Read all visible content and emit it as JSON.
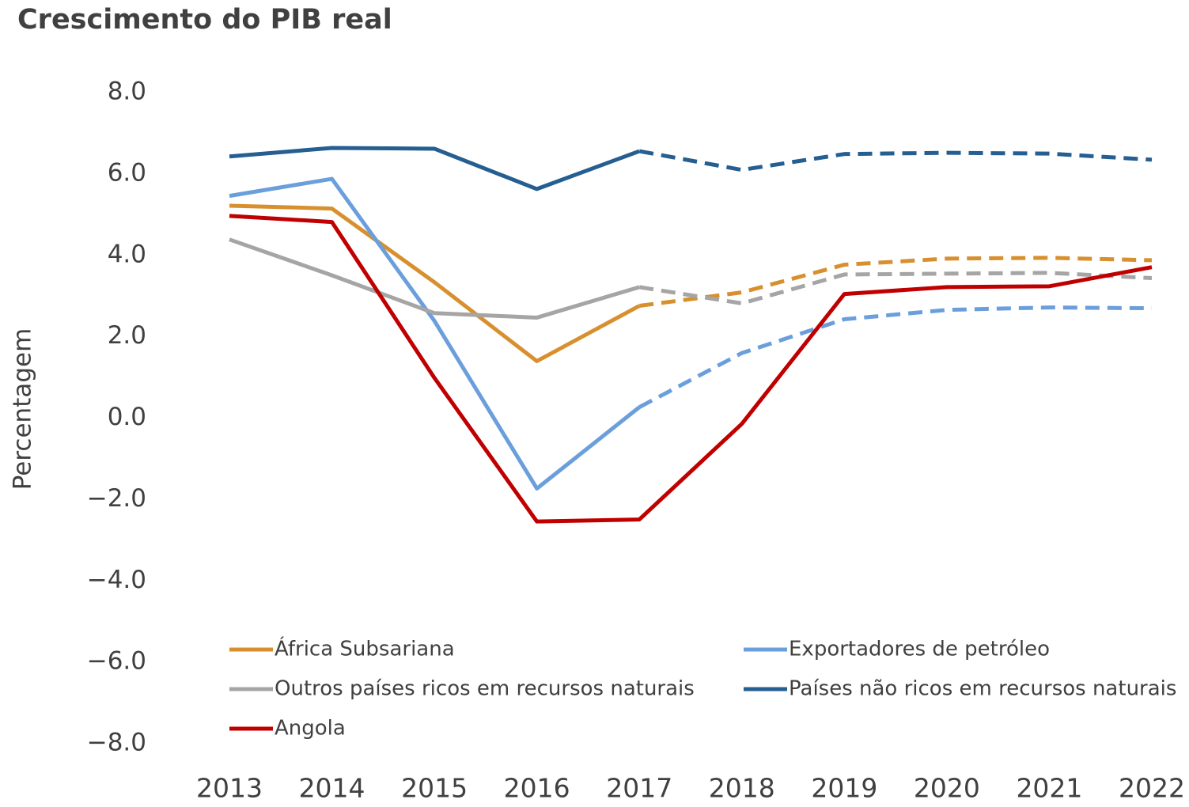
{
  "chart_data": {
    "type": "line",
    "title": "Crescimento do PIB real",
    "y_label": "Percentagem",
    "categories": [
      "2013",
      "2014",
      "2015",
      "2016",
      "2017",
      "2018",
      "2019",
      "2020",
      "2021",
      "2022"
    ],
    "projection_start": "2017",
    "ylim": [
      -8,
      8
    ],
    "yticks": [
      {
        "value": 8,
        "label": "8.0"
      },
      {
        "value": 6,
        "label": "6.0"
      },
      {
        "value": 4,
        "label": "4.0"
      },
      {
        "value": 2,
        "label": "2.0"
      },
      {
        "value": 0,
        "label": "0.0"
      },
      {
        "value": -2,
        "label": "−2.0"
      },
      {
        "value": -4,
        "label": "−4.0"
      },
      {
        "value": -6,
        "label": "−6.0"
      },
      {
        "value": -8,
        "label": "−8.0"
      }
    ],
    "grid": false,
    "series": [
      {
        "name": "África Subsariana",
        "color": "#D8902F",
        "dashed": true,
        "values": [
          5.22,
          5.15,
          3.34,
          1.4,
          2.76,
          3.09,
          3.77,
          3.92,
          3.94,
          3.88
        ]
      },
      {
        "name": "Exportadores de petróleo",
        "color": "#6A9FDC",
        "dashed": true,
        "values": [
          5.46,
          5.88,
          2.39,
          -1.73,
          0.27,
          1.6,
          2.43,
          2.66,
          2.72,
          2.7
        ]
      },
      {
        "name": "Outros países ricos em recursos naturais",
        "color": "#A5A5A5",
        "dashed": true,
        "values": [
          4.39,
          3.51,
          2.58,
          2.47,
          3.22,
          2.82,
          3.53,
          3.55,
          3.57,
          3.44
        ]
      },
      {
        "name": "Países não ricos em recursos naturais",
        "color": "#255E91",
        "dashed": true,
        "values": [
          6.43,
          6.64,
          6.62,
          5.63,
          6.56,
          6.1,
          6.49,
          6.52,
          6.5,
          6.35
        ]
      },
      {
        "name": "Angola",
        "color": "#C00000",
        "dashed": false,
        "values": [
          4.97,
          4.82,
          0.99,
          -2.54,
          -2.49,
          -0.14,
          3.05,
          3.22,
          3.24,
          3.71
        ]
      }
    ]
  }
}
